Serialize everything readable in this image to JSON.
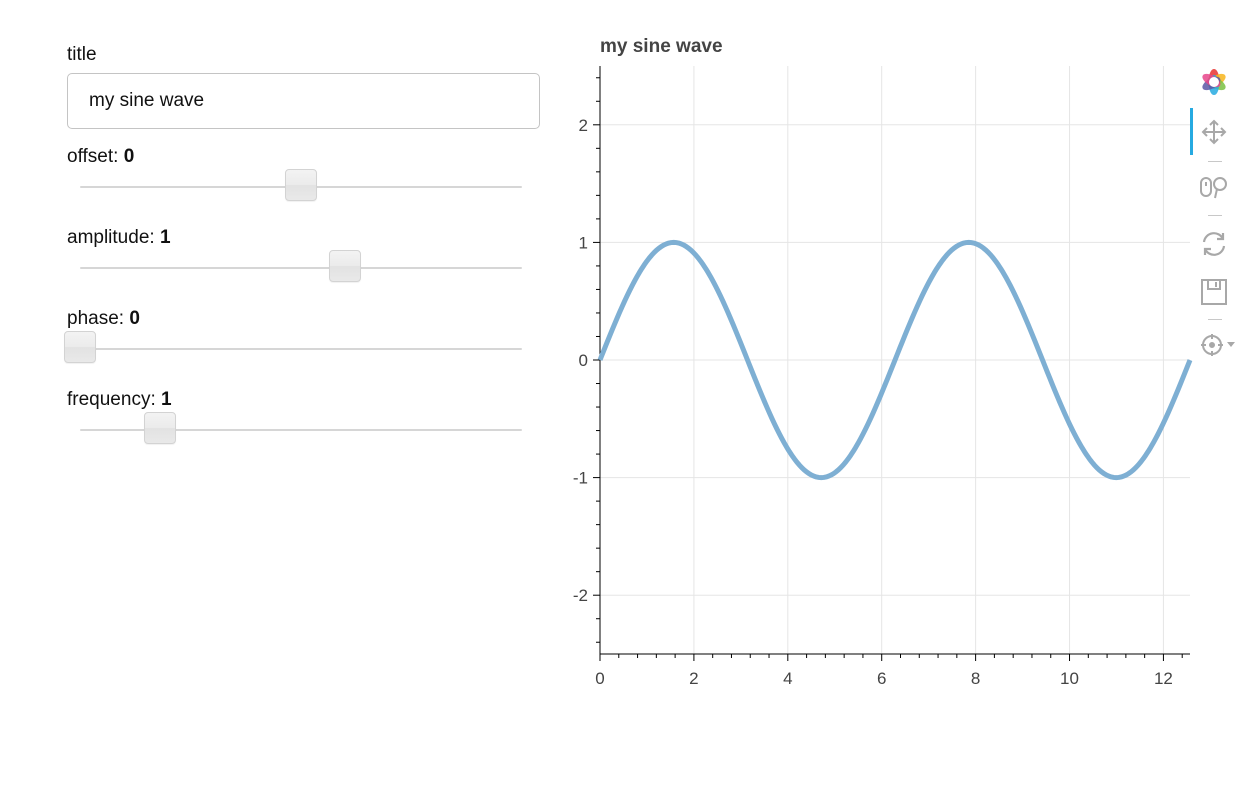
{
  "widgets": {
    "title_label": "title",
    "title_value": "my sine wave",
    "sliders": [
      {
        "label": "offset: ",
        "value": "0",
        "fraction": 0.5
      },
      {
        "label": "amplitude: ",
        "value": "1",
        "fraction": 0.6
      },
      {
        "label": "phase: ",
        "value": "0",
        "fraction": 0.0
      },
      {
        "label": "frequency: ",
        "value": "1",
        "fraction": 0.18
      }
    ]
  },
  "toolbar": {
    "logo": "bokeh-logo-icon",
    "tools": [
      "pan-icon",
      "wheel-zoom-icon",
      "reset-icon",
      "save-icon",
      "hover-icon"
    ],
    "active_tool": "pan-icon",
    "accent_color": "#26aae1"
  },
  "chart_data": {
    "type": "line",
    "title": "my sine wave",
    "xlabel": "",
    "ylabel": "",
    "function": "y = sin(x)",
    "xlim": [
      0,
      12.566
    ],
    "ylim": [
      -2.5,
      2.5
    ],
    "xticks": [
      "0",
      "2",
      "4",
      "6",
      "8",
      "10",
      "12"
    ],
    "yticks": [
      "2",
      "1",
      "0",
      "-1",
      "-2"
    ],
    "grid": true,
    "series": [
      {
        "color": "#7eafd3",
        "x": [
          0,
          0.785,
          1.571,
          2.356,
          3.142,
          3.927,
          4.712,
          5.498,
          6.283,
          7.069,
          7.854,
          8.639,
          9.425,
          10.21,
          10.996,
          11.781,
          12.566
        ],
        "y": [
          0,
          0.707,
          1,
          0.707,
          0,
          -0.707,
          -1,
          -0.707,
          0,
          0.707,
          1,
          0.707,
          0,
          -0.707,
          -1,
          -0.707,
          0
        ]
      }
    ]
  }
}
